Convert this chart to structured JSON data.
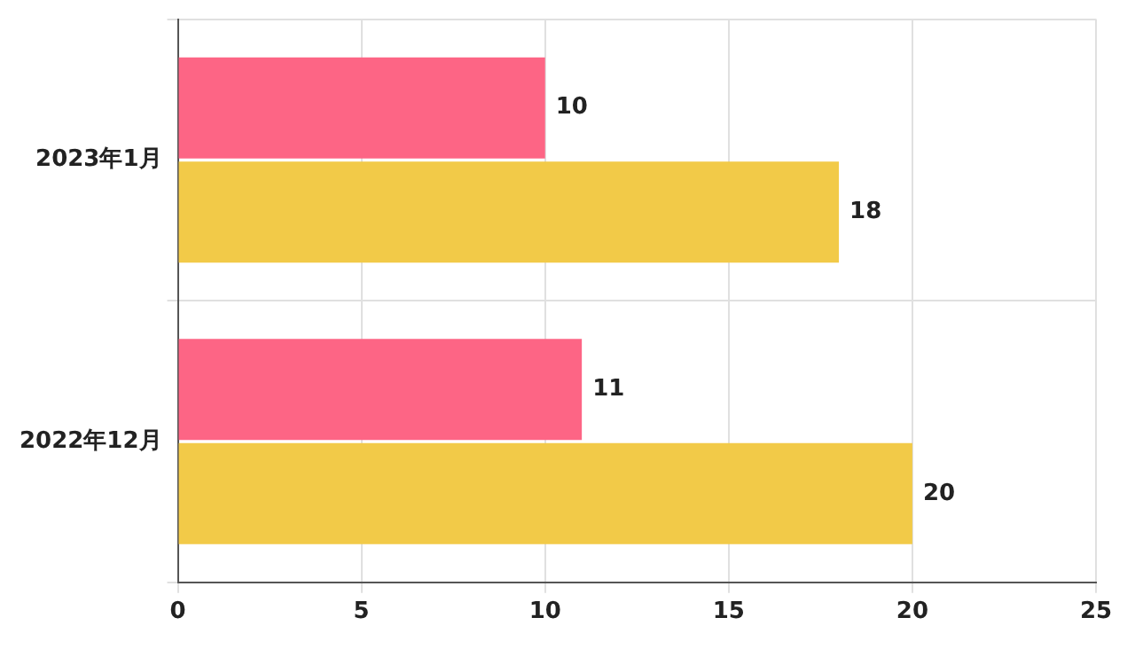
{
  "chart_data": {
    "type": "bar",
    "orientation": "horizontal",
    "categories": [
      "2023年1月",
      "2022年12月"
    ],
    "series": [
      {
        "color": "#fd6585",
        "values": [
          10,
          11
        ]
      },
      {
        "color": "#f2ca48",
        "values": [
          18,
          20
        ]
      }
    ],
    "xlim": [
      0,
      25
    ],
    "xticks": [
      0,
      5,
      10,
      15,
      20,
      25
    ],
    "grid": true,
    "data_labels": true,
    "legend": false
  }
}
